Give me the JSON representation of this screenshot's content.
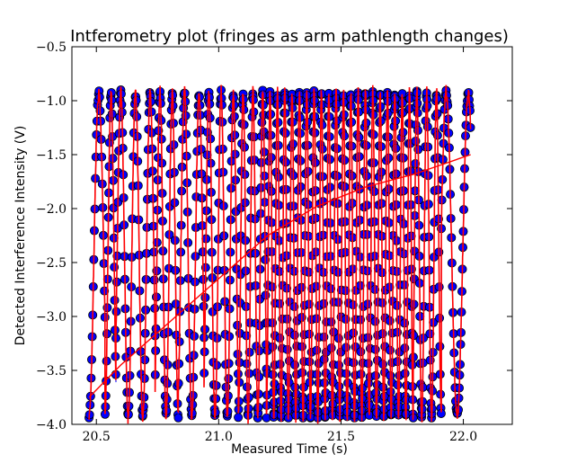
{
  "chart_data": {
    "type": "scatter",
    "title": "Intferometry plot (fringes as arm pathlength changes)",
    "xlabel": "Measured Time (s)",
    "ylabel": "Detected Interference Intensity (V)",
    "xlim": [
      20.4,
      22.2
    ],
    "ylim": [
      -4.0,
      -0.5
    ],
    "xticks": [
      20.5,
      21.0,
      21.5,
      22.0
    ],
    "xtick_labels": [
      "20.5",
      "21.0",
      "21.5",
      "22.0"
    ],
    "yticks": [
      -4.0,
      -3.5,
      -3.0,
      -2.5,
      -2.0,
      -1.5,
      -1.0,
      -0.5
    ],
    "ytick_labels": [
      "−4.0",
      "−3.5",
      "−3.0",
      "−2.5",
      "−2.0",
      "−1.5",
      "−1.0",
      "−0.5"
    ],
    "grid": false,
    "legend": "none",
    "colors": {
      "marker_fill": "#0000ff",
      "marker_edge": "#000000",
      "connect_line": "#0000ff",
      "fit_line": "#ff0000"
    },
    "series": [
      {
        "kind": "scatter-with-line",
        "x_range": [
          20.47,
          22.03
        ],
        "y_range": [
          -3.92,
          -0.93
        ],
        "fringe_peaks_t": [
          20.51,
          20.56,
          20.6,
          20.66,
          20.72,
          20.76,
          20.81,
          20.86,
          20.92,
          20.96,
          21.01,
          21.06,
          21.1,
          21.14,
          21.18,
          21.21,
          21.24,
          21.27,
          21.3,
          21.33,
          21.36,
          21.39,
          21.42,
          21.45,
          21.48,
          21.51,
          21.54,
          21.57,
          21.6,
          21.63,
          21.66,
          21.69,
          21.72,
          21.75,
          21.78,
          21.81,
          21.85,
          21.89,
          21.93,
          22.02
        ]
      },
      {
        "kind": "trend",
        "x": [
          20.47,
          20.6,
          20.8,
          21.0,
          21.2,
          21.4,
          21.6,
          21.8,
          22.03
        ],
        "y": [
          -3.75,
          -3.45,
          -3.05,
          -2.65,
          -2.25,
          -1.98,
          -1.8,
          -1.68,
          -1.5
        ]
      }
    ]
  }
}
